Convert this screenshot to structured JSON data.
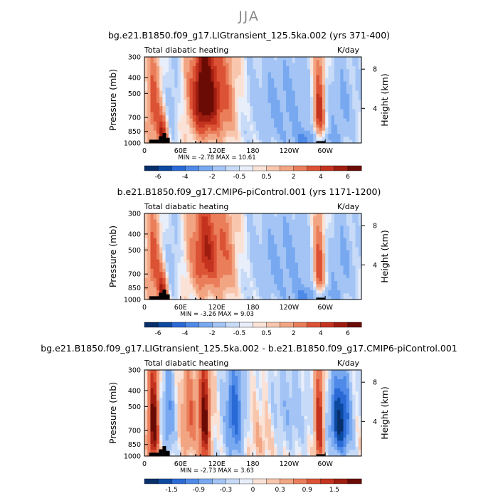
{
  "figure": {
    "title": "JJA"
  },
  "panels_meta": [
    {
      "title": "bg.e21.B1850.f09_g17.LIGtransient_125.5ka.002 (yrs 371-400)",
      "left_label": "Total diabatic heating",
      "units": "K/day",
      "stats": "MIN =    -2.78   MAX =    10.61"
    },
    {
      "title": "b.e21.B1850.f09_g17.CMIP6-piControl.001 (yrs 1171-1200)",
      "left_label": "Total diabatic heating",
      "units": "K/day",
      "stats": "MIN =   -3.26   MAX =    9.03"
    },
    {
      "title": "bg.e21.B1850.f09_g17.LIGtransient_125.5ka.002 - b.e21.B1850.f09_g17.CMIP6-piControl.001",
      "left_label": "Total diabatic heating",
      "units": "K/day",
      "stats": "MIN =   -2.73   MAX =    3.63"
    }
  ],
  "chart_data": [
    {
      "type": "heatmap",
      "ylabel": "Pressure (mb)",
      "ylabel_right": "Height (km)",
      "x_ticks": [
        "0",
        "60E",
        "120E",
        "180",
        "120W",
        "60W"
      ],
      "y_ticks": [
        "300",
        "400",
        "500",
        "700",
        "850",
        "1000"
      ],
      "y_right_ticks": [
        "8",
        "4"
      ],
      "xlim": [
        0,
        360
      ],
      "ylim": [
        1000,
        300
      ],
      "colorbar_labels": [
        "-6",
        "-4",
        "-2",
        "-0.5",
        "0.5",
        "2",
        "4",
        "6"
      ],
      "colors": [
        "#08306b",
        "#0c49a0",
        "#2a6ad6",
        "#4f8ae8",
        "#78a9f0",
        "#a3c4f5",
        "#c7dbf8",
        "#e8eefa",
        "#fbe2d6",
        "#f8c6ad",
        "#f2a583",
        "#ea7d5a",
        "#dc5234",
        "#c4331f",
        "#9e1d10",
        "#6b0b05"
      ],
      "min": -2.78,
      "max": 10.61
    },
    {
      "type": "heatmap",
      "ylabel": "Pressure (mb)",
      "ylabel_right": "Height (km)",
      "x_ticks": [
        "0",
        "60E",
        "120E",
        "180",
        "120W",
        "60W"
      ],
      "y_ticks": [
        "300",
        "400",
        "500",
        "700",
        "850",
        "1000"
      ],
      "y_right_ticks": [
        "8",
        "4"
      ],
      "xlim": [
        0,
        360
      ],
      "ylim": [
        1000,
        300
      ],
      "colorbar_labels": [
        "-6",
        "-4",
        "-2",
        "-0.5",
        "0.5",
        "2",
        "4",
        "6"
      ],
      "colors": [
        "#08306b",
        "#0c49a0",
        "#2a6ad6",
        "#4f8ae8",
        "#78a9f0",
        "#a3c4f5",
        "#c7dbf8",
        "#e8eefa",
        "#fbe2d6",
        "#f8c6ad",
        "#f2a583",
        "#ea7d5a",
        "#dc5234",
        "#c4331f",
        "#9e1d10",
        "#6b0b05"
      ],
      "min": -3.26,
      "max": 9.03
    },
    {
      "type": "heatmap",
      "ylabel": "Pressure (mb)",
      "ylabel_right": "Height (km)",
      "x_ticks": [
        "0",
        "60E",
        "120E",
        "180",
        "120W",
        "60W"
      ],
      "y_ticks": [
        "300",
        "400",
        "500",
        "700",
        "850",
        "1000"
      ],
      "y_right_ticks": [
        "8",
        "4"
      ],
      "xlim": [
        0,
        360
      ],
      "ylim": [
        1000,
        300
      ],
      "colorbar_labels": [
        "-1.5",
        "-0.9",
        "-0.3",
        "0",
        "0.3",
        "0.9",
        "1.5"
      ],
      "colors": [
        "#08306b",
        "#0c49a0",
        "#2a6ad6",
        "#4f8ae8",
        "#78a9f0",
        "#a3c4f5",
        "#c7dbf8",
        "#e8eefa",
        "#fbe2d6",
        "#f8c6ad",
        "#f2a583",
        "#ea7d5a",
        "#dc5234",
        "#c4331f",
        "#9e1d10",
        "#6b0b05"
      ],
      "min": -2.73,
      "max": 3.63
    }
  ]
}
